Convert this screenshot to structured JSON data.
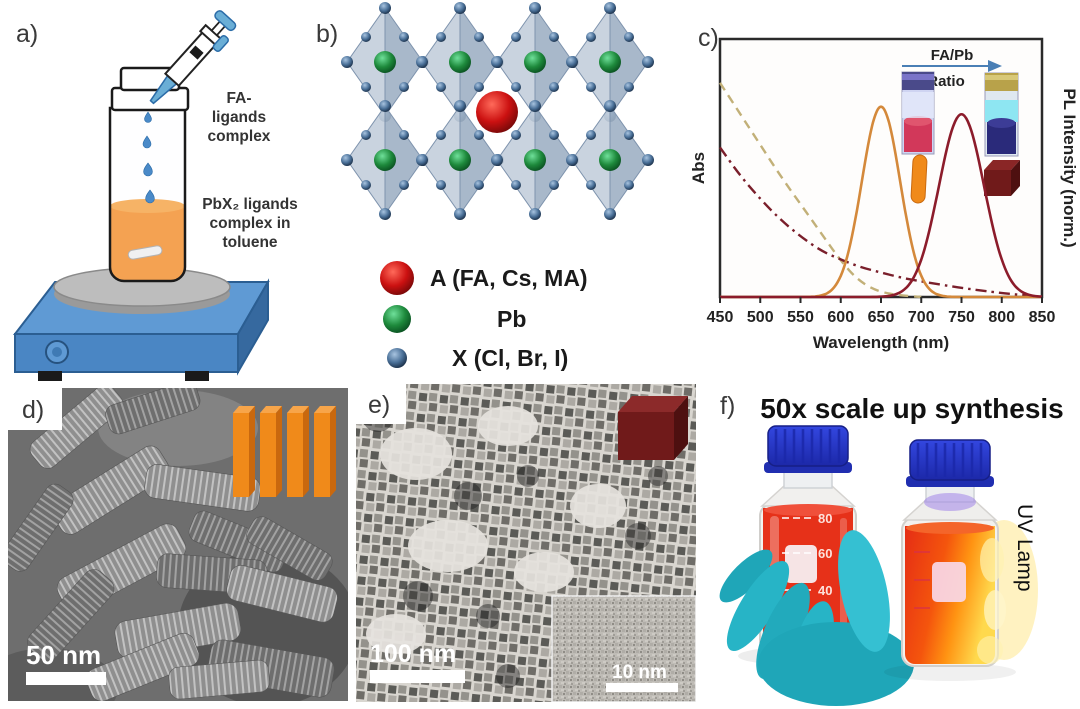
{
  "panels": {
    "a": {
      "label": "a)",
      "fa_lines": [
        "FA-",
        "ligands",
        "complex"
      ],
      "pbx_lines": [
        "PbX₂ ligands",
        "complex in",
        "toluene"
      ]
    },
    "b": {
      "label": "b)",
      "legend": [
        {
          "symbol": "red-sphere",
          "text": "A (FA, Cs, MA)"
        },
        {
          "symbol": "green-sphere",
          "text": "Pb"
        },
        {
          "symbol": "blue-sphere",
          "text": "X (Cl, Br, I)"
        }
      ]
    },
    "c": {
      "label": "c)"
    },
    "d": {
      "label": "d)",
      "scalebar": "50 nm"
    },
    "e": {
      "label": "e)",
      "scalebar": "100 nm",
      "inset_scalebar": "10 nm"
    },
    "f": {
      "label": "f)",
      "title": "50x scale up synthesis",
      "uv_label": "UV Lamp",
      "graduations": [
        "80",
        "60",
        "40"
      ]
    }
  },
  "chart_data": {
    "type": "line",
    "xlabel": "Wavelength (nm)",
    "ylabel_left": "Abs",
    "ylabel_right": "PL Intensity (norm.)",
    "xlim": [
      450,
      850
    ],
    "x_ticks": [
      450,
      500,
      550,
      600,
      650,
      700,
      750,
      800,
      850
    ],
    "grid": false,
    "annotation": {
      "line1": "FA/Pb",
      "line2": "Ratio"
    },
    "series": [
      {
        "name": "absorbance-nanoplatelets",
        "style": "dashed",
        "color": "#c2b078",
        "x": [
          450,
          475,
          500,
          525,
          550,
          575,
          600,
          620,
          640,
          660,
          680,
          700
        ],
        "y": [
          0.83,
          0.71,
          0.59,
          0.47,
          0.36,
          0.25,
          0.14,
          0.07,
          0.03,
          0.012,
          0.005,
          0.0
        ]
      },
      {
        "name": "absorbance-nanocubes",
        "style": "dash-dot",
        "color": "#7a1f2b",
        "x": [
          450,
          475,
          500,
          525,
          550,
          575,
          600,
          625,
          650,
          675,
          700,
          750,
          800,
          835
        ],
        "y": [
          0.58,
          0.47,
          0.38,
          0.3,
          0.235,
          0.18,
          0.145,
          0.115,
          0.095,
          0.075,
          0.06,
          0.035,
          0.015,
          0.005
        ]
      },
      {
        "name": "PL-nanoplatelets",
        "style": "solid",
        "color": "#d4893b",
        "peak_nm": 650,
        "fwhm_nm": 56,
        "amplitude": 0.74
      },
      {
        "name": "PL-nanocubes",
        "style": "solid",
        "color": "#8c1c2b",
        "peak_nm": 750,
        "fwhm_nm": 66,
        "amplitude": 0.71
      }
    ]
  },
  "colors": {
    "hotplate_blue": "#4a86c4",
    "liquid_orange": "#f28418",
    "pipette_blue": "#6aaed6",
    "arrow_blue": "#4a7fb5",
    "sphere_red": "#cc1111",
    "sphere_green": "#1e8a3c",
    "sphere_blue": "#4a7098",
    "platelet_orange": "#f08a1a",
    "cube_maroon": "#701a1a",
    "glove_teal": "#27b4c6",
    "cap_blue": "#2636c8",
    "bottle_liquid_red": "#e63119",
    "uv_glow_yellow": "#ffd94d"
  }
}
